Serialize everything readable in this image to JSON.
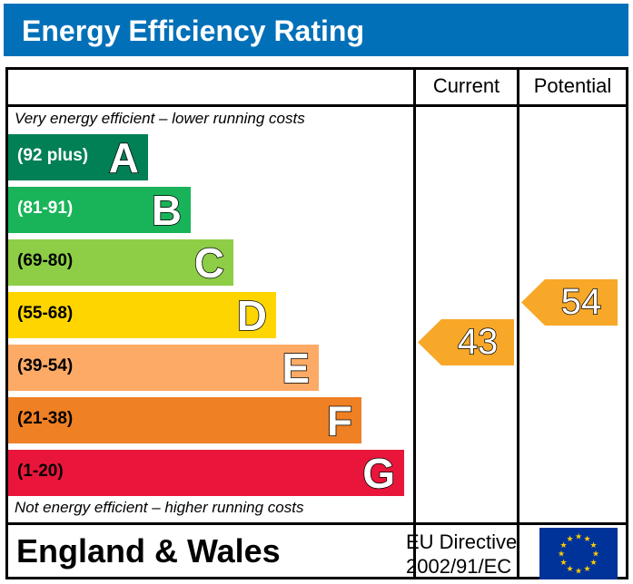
{
  "header": {
    "title": "Energy Efficiency Rating"
  },
  "columns": {
    "current": "Current",
    "potential": "Potential"
  },
  "notes": {
    "top": "Very energy efficient – lower running costs",
    "bottom": "Not energy efficient – higher running costs"
  },
  "chart_data": {
    "type": "bar",
    "title": "Energy Efficiency Rating",
    "categories": [
      "A",
      "B",
      "C",
      "D",
      "E",
      "F",
      "G"
    ],
    "bands": [
      {
        "letter": "A",
        "range": "(92 plus)",
        "color": "#008054",
        "text_color": "#ffffff"
      },
      {
        "letter": "B",
        "range": "(81-91)",
        "color": "#19b459",
        "text_color": "#ffffff"
      },
      {
        "letter": "C",
        "range": "(69-80)",
        "color": "#8dce46",
        "text_color": "#000000"
      },
      {
        "letter": "D",
        "range": "(55-68)",
        "color": "#ffd500",
        "text_color": "#000000"
      },
      {
        "letter": "E",
        "range": "(39-54)",
        "color": "#fcaa65",
        "text_color": "#000000"
      },
      {
        "letter": "F",
        "range": "(21-38)",
        "color": "#ef8023",
        "text_color": "#000000"
      },
      {
        "letter": "G",
        "range": "(1-20)",
        "color": "#e9153b",
        "text_color": "#000000"
      }
    ],
    "current": {
      "value": 43,
      "band": "E",
      "color": "#f7a828"
    },
    "potential": {
      "value": 54,
      "band": "E",
      "color": "#f7a828"
    }
  },
  "footer": {
    "region": "England & Wales",
    "directive_line1": "EU Directive",
    "directive_line2": "2002/91/EC"
  },
  "icons": {
    "flag": "eu-flag-icon"
  }
}
